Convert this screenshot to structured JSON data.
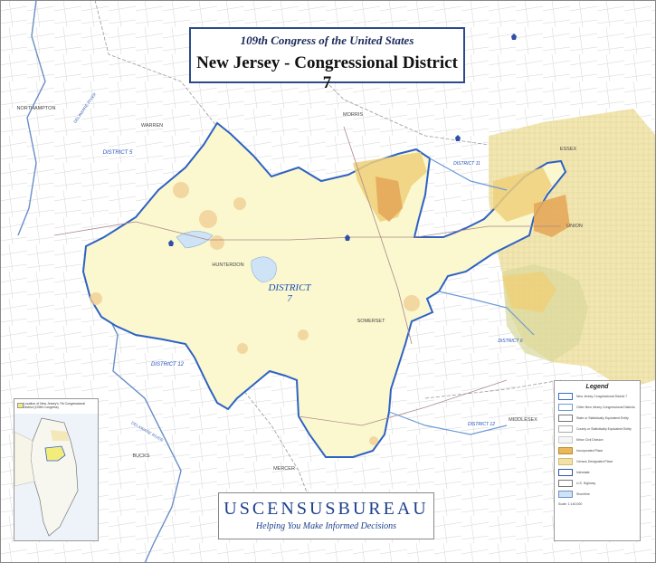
{
  "title": {
    "line1": "109th Congress of the United States",
    "line2": "New Jersey - Congressional District 7"
  },
  "census": {
    "name": "USCENSUSBUREAU",
    "tagline": "Helping You Make Informed Decisions"
  },
  "district_label": {
    "line1": "DISTRICT",
    "line2": "7"
  },
  "counties": {
    "northampton": "NORTHAMPTON",
    "warren": "WARREN",
    "morris": "MORRIS",
    "essex": "ESSEX",
    "union": "UNION",
    "hunterdon": "HUNTERDON",
    "somerset": "SOMERSET",
    "middlesex": "MIDDLESEX",
    "bucks": "BUCKS",
    "mercer": "MERCER"
  },
  "other_districts": {
    "d5": "DISTRICT 5",
    "d11": "DISTRICT 11",
    "d12": "DISTRICT 12",
    "d6": "DISTRICT 6",
    "d12_south": "DISTRICT 12"
  },
  "rivers": {
    "delaware_north": "DELAWARE RIVER",
    "delaware_south": "DELAWARE RIVER"
  },
  "legend": {
    "title": "Legend",
    "items": [
      {
        "label": "New Jersey Congressional District 7",
        "color": "#ffffff",
        "border": "#3a6cc8"
      },
      {
        "label": "Other New Jersey Congressional Districts",
        "color": "#ffffff",
        "border": "#6a9ad8"
      },
      {
        "label": "State or Statistically Equivalent Entity",
        "color": "#ffffff",
        "border": "#777777"
      },
      {
        "label": "County or Statistically Equivalent Entity",
        "color": "#ffffff",
        "border": "#aaaaaa"
      },
      {
        "label": "Minor Civil Division",
        "color": "#f6f6f6",
        "border": "#cccccc"
      },
      {
        "label": "Incorporated Place",
        "color": "#e8b85a",
        "border": "#c08a30"
      },
      {
        "label": "Census Designated Place",
        "color": "#f3e2a8",
        "border": "#d2bb76"
      },
      {
        "label": "Interstate",
        "color": "#ffffff",
        "border": "#3355aa"
      },
      {
        "label": "U.S. Highway",
        "color": "#ffffff",
        "border": "#777777"
      },
      {
        "label": "Shoreline",
        "color": "#cfe3f6",
        "border": "#6c8fc6"
      }
    ],
    "scale": "Scale: 1:140,000"
  },
  "inset": {
    "caption": "Location of New Jersey's 7th Congressional District (109th Congress)"
  },
  "colors": {
    "district_fill": "#fbf8cf",
    "district_border": "#2e62c4",
    "urban_fill": "#f2e0a0",
    "place_fill": "#e8b85a",
    "water": "#cfe3f6"
  },
  "icons": [
    "interstate-shield-icon",
    "road-network-pattern"
  ]
}
